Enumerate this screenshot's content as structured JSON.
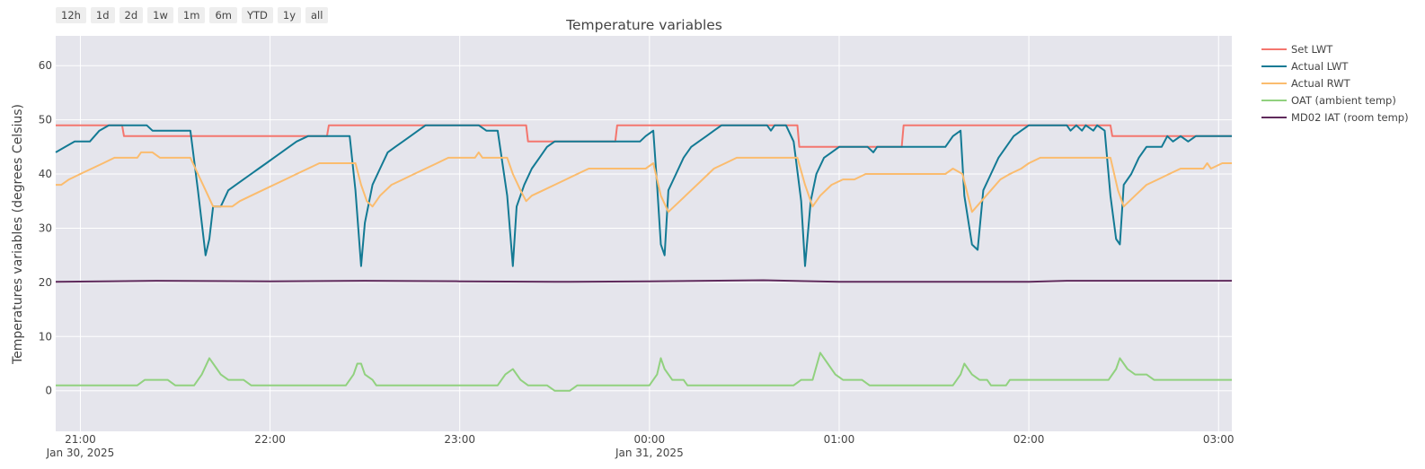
{
  "range_buttons": [
    "12h",
    "1d",
    "2d",
    "1w",
    "1m",
    "6m",
    "YTD",
    "1y",
    "all"
  ],
  "chart_data": {
    "type": "line",
    "title": "Temperature variables",
    "xlabel": "",
    "ylabel": "Temperatures variables (degrees Celsius)",
    "x_unit": "hours since 20:00 Jan 30, 2025",
    "xlim": [
      0.87,
      7.07
    ],
    "ylim": [
      -7.5,
      65.5
    ],
    "yticks": [
      0,
      10,
      20,
      30,
      40,
      50,
      60
    ],
    "xticks": [
      {
        "x": 1,
        "label": "21:00",
        "date": "Jan 30, 2025"
      },
      {
        "x": 2,
        "label": "22:00",
        "date": ""
      },
      {
        "x": 3,
        "label": "23:00",
        "date": ""
      },
      {
        "x": 4,
        "label": "00:00",
        "date": "Jan 31, 2025"
      },
      {
        "x": 5,
        "label": "01:00",
        "date": ""
      },
      {
        "x": 6,
        "label": "02:00",
        "date": ""
      },
      {
        "x": 7,
        "label": "03:00",
        "date": ""
      }
    ],
    "grid": true,
    "legend_position": "right",
    "series": [
      {
        "name": "Set LWT",
        "color": "#f4766e",
        "points": [
          [
            0.87,
            49
          ],
          [
            1.22,
            49
          ],
          [
            1.23,
            47
          ],
          [
            2.3,
            47
          ],
          [
            2.31,
            49
          ],
          [
            3.35,
            49
          ],
          [
            3.36,
            46
          ],
          [
            3.82,
            46
          ],
          [
            3.83,
            49
          ],
          [
            4.78,
            49
          ],
          [
            4.79,
            45
          ],
          [
            5.33,
            45
          ],
          [
            5.34,
            49
          ],
          [
            6.43,
            49
          ],
          [
            6.44,
            47
          ],
          [
            7.07,
            47
          ]
        ]
      },
      {
        "name": "Actual LWT",
        "color": "#137a94",
        "points": [
          [
            0.87,
            44
          ],
          [
            0.92,
            45
          ],
          [
            0.97,
            46
          ],
          [
            1.05,
            46
          ],
          [
            1.1,
            48
          ],
          [
            1.15,
            49
          ],
          [
            1.35,
            49
          ],
          [
            1.38,
            48
          ],
          [
            1.58,
            48
          ],
          [
            1.62,
            37
          ],
          [
            1.66,
            25
          ],
          [
            1.68,
            28
          ],
          [
            1.7,
            34
          ],
          [
            1.74,
            34
          ],
          [
            1.78,
            37
          ],
          [
            1.82,
            38
          ],
          [
            1.86,
            39
          ],
          [
            1.9,
            40
          ],
          [
            1.94,
            41
          ],
          [
            1.98,
            42
          ],
          [
            2.02,
            43
          ],
          [
            2.06,
            44
          ],
          [
            2.1,
            45
          ],
          [
            2.14,
            46
          ],
          [
            2.2,
            47
          ],
          [
            2.42,
            47
          ],
          [
            2.45,
            37
          ],
          [
            2.48,
            23
          ],
          [
            2.5,
            31
          ],
          [
            2.54,
            38
          ],
          [
            2.58,
            41
          ],
          [
            2.62,
            44
          ],
          [
            2.66,
            45
          ],
          [
            2.7,
            46
          ],
          [
            2.74,
            47
          ],
          [
            2.78,
            48
          ],
          [
            2.82,
            49
          ],
          [
            3.1,
            49
          ],
          [
            3.14,
            48
          ],
          [
            3.2,
            48
          ],
          [
            3.25,
            36
          ],
          [
            3.28,
            23
          ],
          [
            3.3,
            34
          ],
          [
            3.34,
            38
          ],
          [
            3.38,
            41
          ],
          [
            3.42,
            43
          ],
          [
            3.46,
            45
          ],
          [
            3.5,
            46
          ],
          [
            3.95,
            46
          ],
          [
            3.98,
            47
          ],
          [
            4.02,
            48
          ],
          [
            4.04,
            38
          ],
          [
            4.06,
            27
          ],
          [
            4.08,
            25
          ],
          [
            4.1,
            37
          ],
          [
            4.14,
            40
          ],
          [
            4.18,
            43
          ],
          [
            4.22,
            45
          ],
          [
            4.26,
            46
          ],
          [
            4.3,
            47
          ],
          [
            4.34,
            48
          ],
          [
            4.38,
            49
          ],
          [
            4.62,
            49
          ],
          [
            4.64,
            48
          ],
          [
            4.66,
            49
          ],
          [
            4.72,
            49
          ],
          [
            4.76,
            46
          ],
          [
            4.8,
            35
          ],
          [
            4.82,
            23
          ],
          [
            4.85,
            35
          ],
          [
            4.88,
            40
          ],
          [
            4.92,
            43
          ],
          [
            4.96,
            44
          ],
          [
            5.0,
            45
          ],
          [
            5.15,
            45
          ],
          [
            5.18,
            44
          ],
          [
            5.2,
            45
          ],
          [
            5.56,
            45
          ],
          [
            5.6,
            47
          ],
          [
            5.64,
            48
          ],
          [
            5.66,
            36
          ],
          [
            5.7,
            27
          ],
          [
            5.73,
            26
          ],
          [
            5.76,
            37
          ],
          [
            5.8,
            40
          ],
          [
            5.84,
            43
          ],
          [
            5.88,
            45
          ],
          [
            5.92,
            47
          ],
          [
            5.96,
            48
          ],
          [
            6.0,
            49
          ],
          [
            6.2,
            49
          ],
          [
            6.22,
            48
          ],
          [
            6.25,
            49
          ],
          [
            6.28,
            48
          ],
          [
            6.3,
            49
          ],
          [
            6.34,
            48
          ],
          [
            6.36,
            49
          ],
          [
            6.4,
            48
          ],
          [
            6.43,
            36
          ],
          [
            6.46,
            28
          ],
          [
            6.48,
            27
          ],
          [
            6.5,
            38
          ],
          [
            6.54,
            40
          ],
          [
            6.58,
            43
          ],
          [
            6.62,
            45
          ],
          [
            6.7,
            45
          ],
          [
            6.73,
            47
          ],
          [
            6.76,
            46
          ],
          [
            6.8,
            47
          ],
          [
            6.84,
            46
          ],
          [
            6.88,
            47
          ],
          [
            7.07,
            47
          ]
        ]
      },
      {
        "name": "Actual RWT",
        "color": "#fbbc6e",
        "points": [
          [
            0.87,
            38
          ],
          [
            0.9,
            38
          ],
          [
            0.94,
            39
          ],
          [
            1.0,
            40
          ],
          [
            1.06,
            41
          ],
          [
            1.12,
            42
          ],
          [
            1.18,
            43
          ],
          [
            1.3,
            43
          ],
          [
            1.32,
            44
          ],
          [
            1.38,
            44
          ],
          [
            1.42,
            43
          ],
          [
            1.58,
            43
          ],
          [
            1.62,
            40
          ],
          [
            1.66,
            37
          ],
          [
            1.7,
            34
          ],
          [
            1.8,
            34
          ],
          [
            1.84,
            35
          ],
          [
            1.9,
            36
          ],
          [
            1.96,
            37
          ],
          [
            2.02,
            38
          ],
          [
            2.08,
            39
          ],
          [
            2.14,
            40
          ],
          [
            2.2,
            41
          ],
          [
            2.26,
            42
          ],
          [
            2.45,
            42
          ],
          [
            2.48,
            38
          ],
          [
            2.51,
            35
          ],
          [
            2.54,
            34
          ],
          [
            2.58,
            36
          ],
          [
            2.64,
            38
          ],
          [
            2.7,
            39
          ],
          [
            2.76,
            40
          ],
          [
            2.82,
            41
          ],
          [
            2.88,
            42
          ],
          [
            2.94,
            43
          ],
          [
            3.08,
            43
          ],
          [
            3.1,
            44
          ],
          [
            3.12,
            43
          ],
          [
            3.25,
            43
          ],
          [
            3.28,
            40
          ],
          [
            3.32,
            37
          ],
          [
            3.35,
            35
          ],
          [
            3.38,
            36
          ],
          [
            3.44,
            37
          ],
          [
            3.5,
            38
          ],
          [
            3.56,
            39
          ],
          [
            3.62,
            40
          ],
          [
            3.68,
            41
          ],
          [
            3.98,
            41
          ],
          [
            4.02,
            42
          ],
          [
            4.06,
            36
          ],
          [
            4.1,
            33
          ],
          [
            4.16,
            35
          ],
          [
            4.22,
            37
          ],
          [
            4.28,
            39
          ],
          [
            4.34,
            41
          ],
          [
            4.4,
            42
          ],
          [
            4.46,
            43
          ],
          [
            4.78,
            43
          ],
          [
            4.82,
            38
          ],
          [
            4.86,
            34
          ],
          [
            4.9,
            36
          ],
          [
            4.96,
            38
          ],
          [
            5.02,
            39
          ],
          [
            5.08,
            39
          ],
          [
            5.14,
            40
          ],
          [
            5.56,
            40
          ],
          [
            5.6,
            41
          ],
          [
            5.65,
            40
          ],
          [
            5.7,
            33
          ],
          [
            5.75,
            35
          ],
          [
            5.8,
            37
          ],
          [
            5.85,
            39
          ],
          [
            5.9,
            40
          ],
          [
            5.96,
            41
          ],
          [
            6.0,
            42
          ],
          [
            6.06,
            43
          ],
          [
            6.43,
            43
          ],
          [
            6.47,
            37
          ],
          [
            6.5,
            34
          ],
          [
            6.56,
            36
          ],
          [
            6.62,
            38
          ],
          [
            6.68,
            39
          ],
          [
            6.74,
            40
          ],
          [
            6.8,
            41
          ],
          [
            6.92,
            41
          ],
          [
            6.94,
            42
          ],
          [
            6.96,
            41
          ],
          [
            7.02,
            42
          ],
          [
            7.07,
            42
          ]
        ]
      },
      {
        "name": "OAT (ambient temp)",
        "color": "#91d17f",
        "points": [
          [
            0.87,
            1
          ],
          [
            1.3,
            1
          ],
          [
            1.34,
            2
          ],
          [
            1.46,
            2
          ],
          [
            1.5,
            1
          ],
          [
            1.6,
            1
          ],
          [
            1.64,
            3
          ],
          [
            1.68,
            6
          ],
          [
            1.72,
            4
          ],
          [
            1.74,
            3
          ],
          [
            1.78,
            2
          ],
          [
            1.86,
            2
          ],
          [
            1.9,
            1
          ],
          [
            2.4,
            1
          ],
          [
            2.44,
            3
          ],
          [
            2.46,
            5
          ],
          [
            2.48,
            5
          ],
          [
            2.5,
            3
          ],
          [
            2.54,
            2
          ],
          [
            2.56,
            1
          ],
          [
            3.2,
            1
          ],
          [
            3.24,
            3
          ],
          [
            3.28,
            4
          ],
          [
            3.32,
            2
          ],
          [
            3.36,
            1
          ],
          [
            3.46,
            1
          ],
          [
            3.5,
            0
          ],
          [
            3.58,
            0
          ],
          [
            3.62,
            1
          ],
          [
            4.0,
            1
          ],
          [
            4.04,
            3
          ],
          [
            4.06,
            6
          ],
          [
            4.08,
            4
          ],
          [
            4.12,
            2
          ],
          [
            4.18,
            2
          ],
          [
            4.2,
            1
          ],
          [
            4.76,
            1
          ],
          [
            4.8,
            2
          ],
          [
            4.86,
            2
          ],
          [
            4.9,
            7
          ],
          [
            4.94,
            5
          ],
          [
            4.98,
            3
          ],
          [
            5.02,
            2
          ],
          [
            5.12,
            2
          ],
          [
            5.16,
            1
          ],
          [
            5.6,
            1
          ],
          [
            5.62,
            2
          ],
          [
            5.64,
            3
          ],
          [
            5.66,
            5
          ],
          [
            5.7,
            3
          ],
          [
            5.74,
            2
          ],
          [
            5.78,
            2
          ],
          [
            5.8,
            1
          ],
          [
            5.88,
            1
          ],
          [
            5.9,
            2
          ],
          [
            6.42,
            2
          ],
          [
            6.46,
            4
          ],
          [
            6.48,
            6
          ],
          [
            6.52,
            4
          ],
          [
            6.56,
            3
          ],
          [
            6.62,
            3
          ],
          [
            6.66,
            2
          ],
          [
            7.07,
            2
          ]
        ]
      },
      {
        "name": "MD02 IAT (room temp)",
        "color": "#5f2a5c",
        "points": [
          [
            0.87,
            20.1
          ],
          [
            1.4,
            20.3
          ],
          [
            2.0,
            20.2
          ],
          [
            2.5,
            20.3
          ],
          [
            3.0,
            20.2
          ],
          [
            3.5,
            20.1
          ],
          [
            4.0,
            20.2
          ],
          [
            4.6,
            20.4
          ],
          [
            5.0,
            20.1
          ],
          [
            5.5,
            20.1
          ],
          [
            6.0,
            20.1
          ],
          [
            6.2,
            20.3
          ],
          [
            7.07,
            20.3
          ]
        ]
      }
    ]
  }
}
